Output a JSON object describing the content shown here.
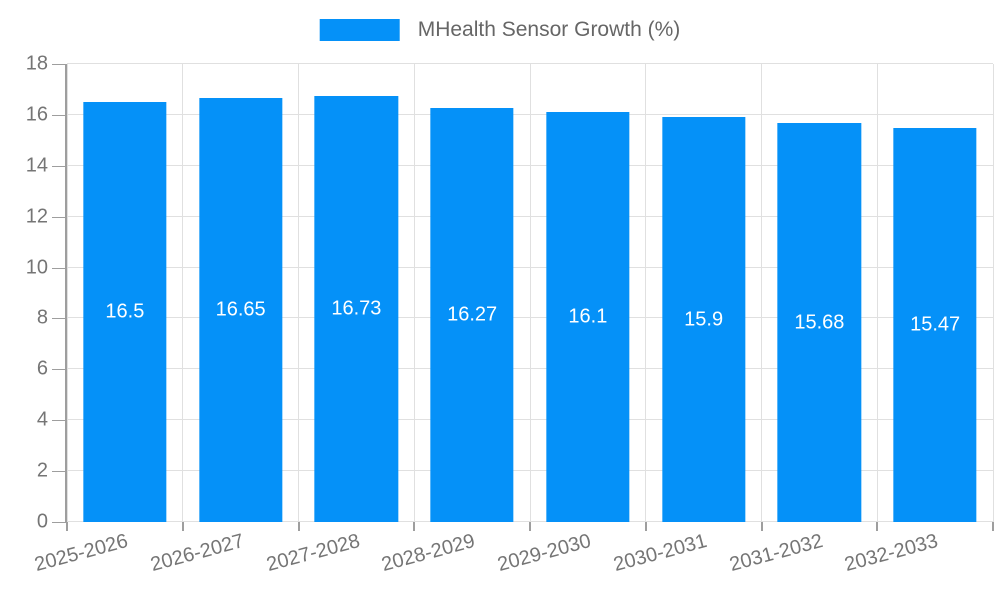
{
  "chart_data": {
    "type": "bar",
    "title": "MHealth Sensor Growth (%)",
    "categories": [
      "2025-2026",
      "2026-2027",
      "2027-2028",
      "2028-2029",
      "2029-2030",
      "2030-2031",
      "2031-2032",
      "2032-2033"
    ],
    "values": [
      16.5,
      16.65,
      16.73,
      16.27,
      16.1,
      15.9,
      15.68,
      15.47
    ],
    "value_labels": [
      "16.5",
      "16.65",
      "16.73",
      "16.27",
      "16.1",
      "15.9",
      "15.68",
      "15.47"
    ],
    "xlabel": "",
    "ylabel": "",
    "ylim": [
      0,
      18
    ],
    "ytick_step": 2,
    "ytick_labels": [
      "0",
      "2",
      "4",
      "6",
      "8",
      "10",
      "12",
      "14",
      "16",
      "18"
    ],
    "grid": true,
    "legend_position": "top-center",
    "x_label_rotation_deg": -15,
    "colors": {
      "bar": "#0591f8",
      "bar_value_label": "#ffffff",
      "axis_text": "#757575",
      "legend_text": "#666666",
      "grid_line": "#e0e0e0",
      "axis_line": "#9e9e9e",
      "background": "#ffffff"
    }
  }
}
